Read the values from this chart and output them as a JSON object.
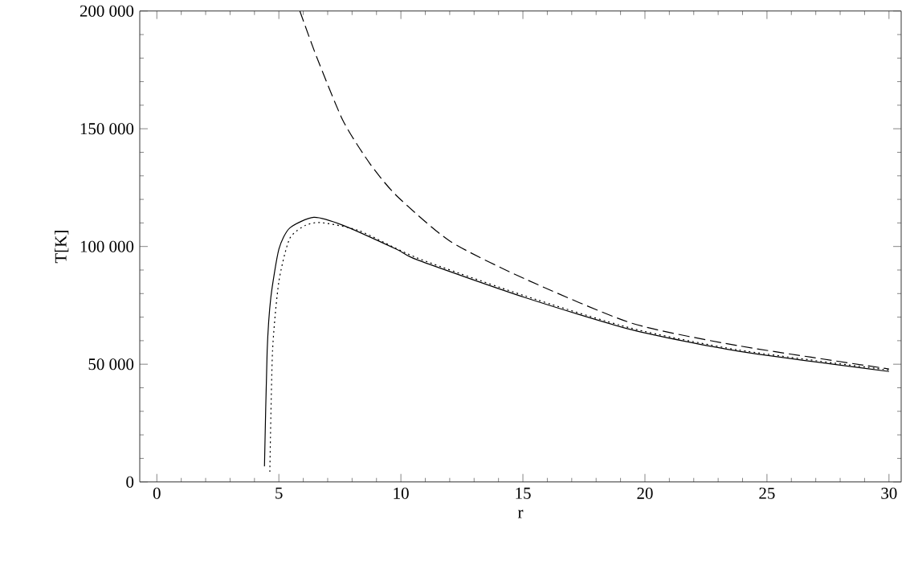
{
  "chart_data": {
    "type": "line",
    "xlabel": "r",
    "ylabel": "T[K]",
    "xlim": [
      -0.7,
      30.5
    ],
    "ylim": [
      0,
      200000
    ],
    "xticks": [
      0,
      5,
      10,
      15,
      20,
      25,
      30
    ],
    "yticks": [
      0,
      {
        "value": 50000,
        "label": "50 000"
      },
      {
        "value": 100000,
        "label": "100 000"
      },
      {
        "value": 150000,
        "label": "150 000"
      },
      {
        "value": 200000,
        "label": "200 000"
      }
    ],
    "grid": false,
    "marker": "none",
    "series": [
      {
        "color": "#000000",
        "line_style": "solid",
        "x": [
          4.41,
          4.52,
          4.67,
          5.0,
          5.44,
          6.43,
          7.63,
          9.83,
          10.7,
          15.09,
          19.47,
          23.86,
          30.0
        ],
        "values": [
          6600,
          55500,
          78300,
          98800,
          107800,
          112400,
          109000,
          98800,
          94200,
          78300,
          64600,
          55500,
          46900
        ]
      },
      {
        "color": "#000000",
        "line_style": "dotted",
        "x": [
          4.63,
          4.74,
          5.0,
          5.44,
          6.1,
          6.76,
          8.29,
          10.7,
          15.09,
          19.47,
          23.86,
          30.0
        ],
        "values": [
          4300,
          55500,
          85100,
          103300,
          109000,
          110100,
          106700,
          95000,
          79000,
          65200,
          56000,
          47500
        ]
      },
      {
        "color": "#000000",
        "line_style": "dashed",
        "x": [
          5.86,
          6.54,
          7.63,
          8.73,
          9.83,
          12.02,
          15.09,
          19.47,
          23.86,
          30.0
        ],
        "values": [
          200000,
          180700,
          153400,
          135200,
          121500,
          102200,
          86200,
          67400,
          57800,
          48000
        ]
      }
    ]
  }
}
